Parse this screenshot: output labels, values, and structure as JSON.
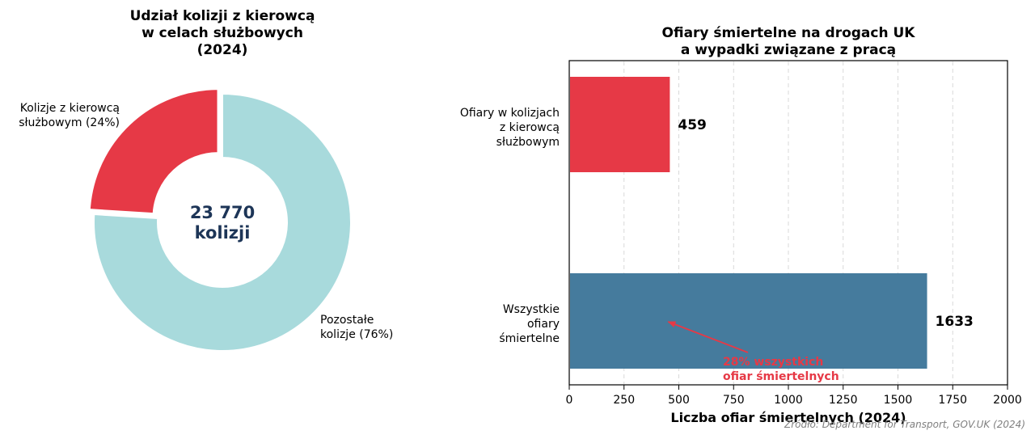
{
  "colors": {
    "red": "#e63946",
    "teal": "#a8dadc",
    "steel": "#457b9d",
    "navy": "#1d3557",
    "grid": "#d9d9d9"
  },
  "chart_data": [
    {
      "type": "pie",
      "variant": "donut",
      "title_lines": [
        "Udział kolizji z kierowcą",
        "w celach służbowych",
        "(2024)"
      ],
      "slices": [
        {
          "name": "Kolizje z kierowcą służbowym",
          "percent": 24,
          "label_lines": [
            "Kolizje z kierowcą",
            "służbowym (24%)"
          ],
          "exploded": true
        },
        {
          "name": "Pozostałe kolizje",
          "percent": 76,
          "label_lines": [
            "Pozostałe",
            "kolizje (76%)"
          ],
          "exploded": false
        }
      ],
      "center_lines": [
        "23 770",
        "kolizji"
      ]
    },
    {
      "type": "bar",
      "orientation": "horizontal",
      "title_lines": [
        "Ofiary śmiertelne na drogach UK",
        "a wypadki związane z pracą"
      ],
      "bars": [
        {
          "label_lines": [
            "Ofiary w kolizjach",
            "z kierowcą",
            "służbowym"
          ],
          "value": 459,
          "value_label": "459"
        },
        {
          "label_lines": [
            "Wszystkie",
            "ofiary",
            "śmiertelne"
          ],
          "value": 1633,
          "value_label": "1633"
        }
      ],
      "xlabel": "Liczba ofiar śmiertelnych (2024)",
      "xlim": [
        0,
        2000
      ],
      "xticks": [
        0,
        250,
        500,
        750,
        1000,
        1250,
        1500,
        1750,
        2000
      ],
      "xtick_labels": [
        "0",
        "250",
        "500",
        "750",
        "1000",
        "1250",
        "1500",
        "1750",
        "2000"
      ],
      "grid": "x-dashed",
      "annotation": {
        "text_lines": [
          "28% wszystkich",
          "ofiar śmiertelnych"
        ],
        "points_to_value": 459
      }
    }
  ],
  "source": "Źródło: Department for Transport, GOV.UK (2024)"
}
